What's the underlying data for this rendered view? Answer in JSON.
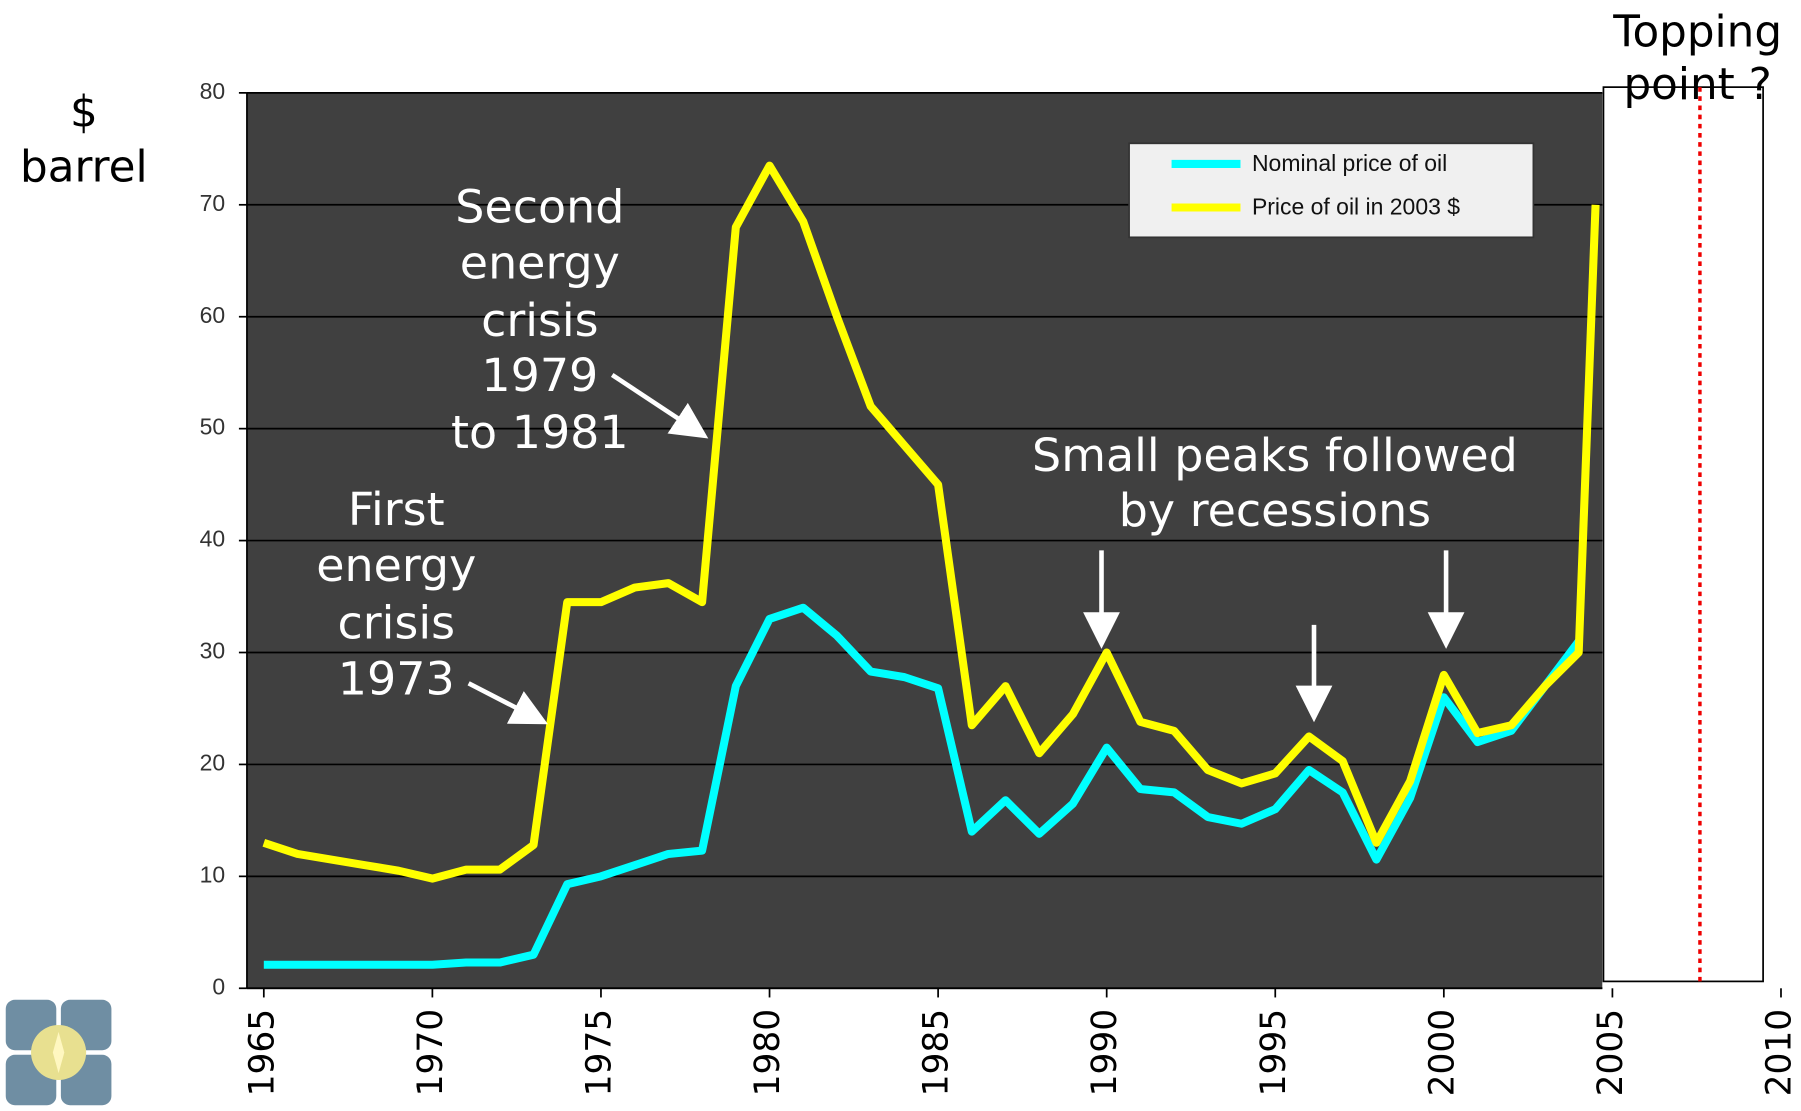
{
  "chart_data": {
    "type": "line",
    "y_label": [
      "$",
      "barrel"
    ],
    "x": [
      1965,
      1966,
      1967,
      1968,
      1969,
      1970,
      1971,
      1972,
      1973,
      1974,
      1975,
      1976,
      1977,
      1978,
      1979,
      1980,
      1981,
      1982,
      1983,
      1984,
      1985,
      1986,
      1987,
      1988,
      1989,
      1990,
      1991,
      1992,
      1993,
      1994,
      1995,
      1996,
      1997,
      1998,
      1999,
      2000,
      2001,
      2002,
      2003,
      2004,
      2004.5
    ],
    "series": [
      {
        "name": "Nominal price of oil",
        "color": "#00ffff",
        "values": [
          2.1,
          2.1,
          2.1,
          2.1,
          2.1,
          2.1,
          2.3,
          2.3,
          3,
          9.3,
          10,
          11,
          12,
          12.3,
          27,
          33,
          34,
          31.5,
          28.3,
          27.8,
          26.8,
          14,
          16.8,
          13.8,
          16.5,
          21.5,
          17.8,
          17.5,
          15.3,
          14.7,
          16,
          19.5,
          17.5,
          11.5,
          17,
          26,
          22,
          23,
          27,
          31,
          null
        ]
      },
      {
        "name": "Price of oil in 2003 $",
        "color": "#ffff00",
        "values": [
          13,
          12,
          11.5,
          11,
          10.5,
          9.8,
          10.6,
          10.6,
          12.8,
          34.5,
          34.5,
          35.8,
          36.2,
          34.5,
          68,
          73.5,
          68.5,
          60,
          52,
          48.5,
          45,
          23.5,
          27,
          21,
          24.5,
          30,
          23.8,
          23,
          19.5,
          18.3,
          19.2,
          22.5,
          20.3,
          13,
          18.5,
          28,
          22.8,
          23.5,
          27,
          30,
          70
        ]
      }
    ],
    "xlim": [
      1964.5,
      2004.7
    ],
    "xticks": [
      1965,
      1970,
      1975,
      1980,
      1985,
      1990,
      1995,
      2000,
      2005,
      2010
    ],
    "ylim": [
      0,
      80
    ],
    "yticks": [
      0,
      10,
      20,
      30,
      40,
      50,
      60,
      70,
      80
    ],
    "grid": true,
    "legend": "upper right",
    "annotations": {
      "first": [
        "First",
        "energy",
        "crisis",
        "1973"
      ],
      "second": [
        "Second",
        "energy",
        "crisis",
        "1979",
        "to 1981"
      ],
      "small": [
        "Small peaks followed",
        "by recessions"
      ],
      "topping": [
        "Topping",
        "point ?"
      ]
    }
  }
}
